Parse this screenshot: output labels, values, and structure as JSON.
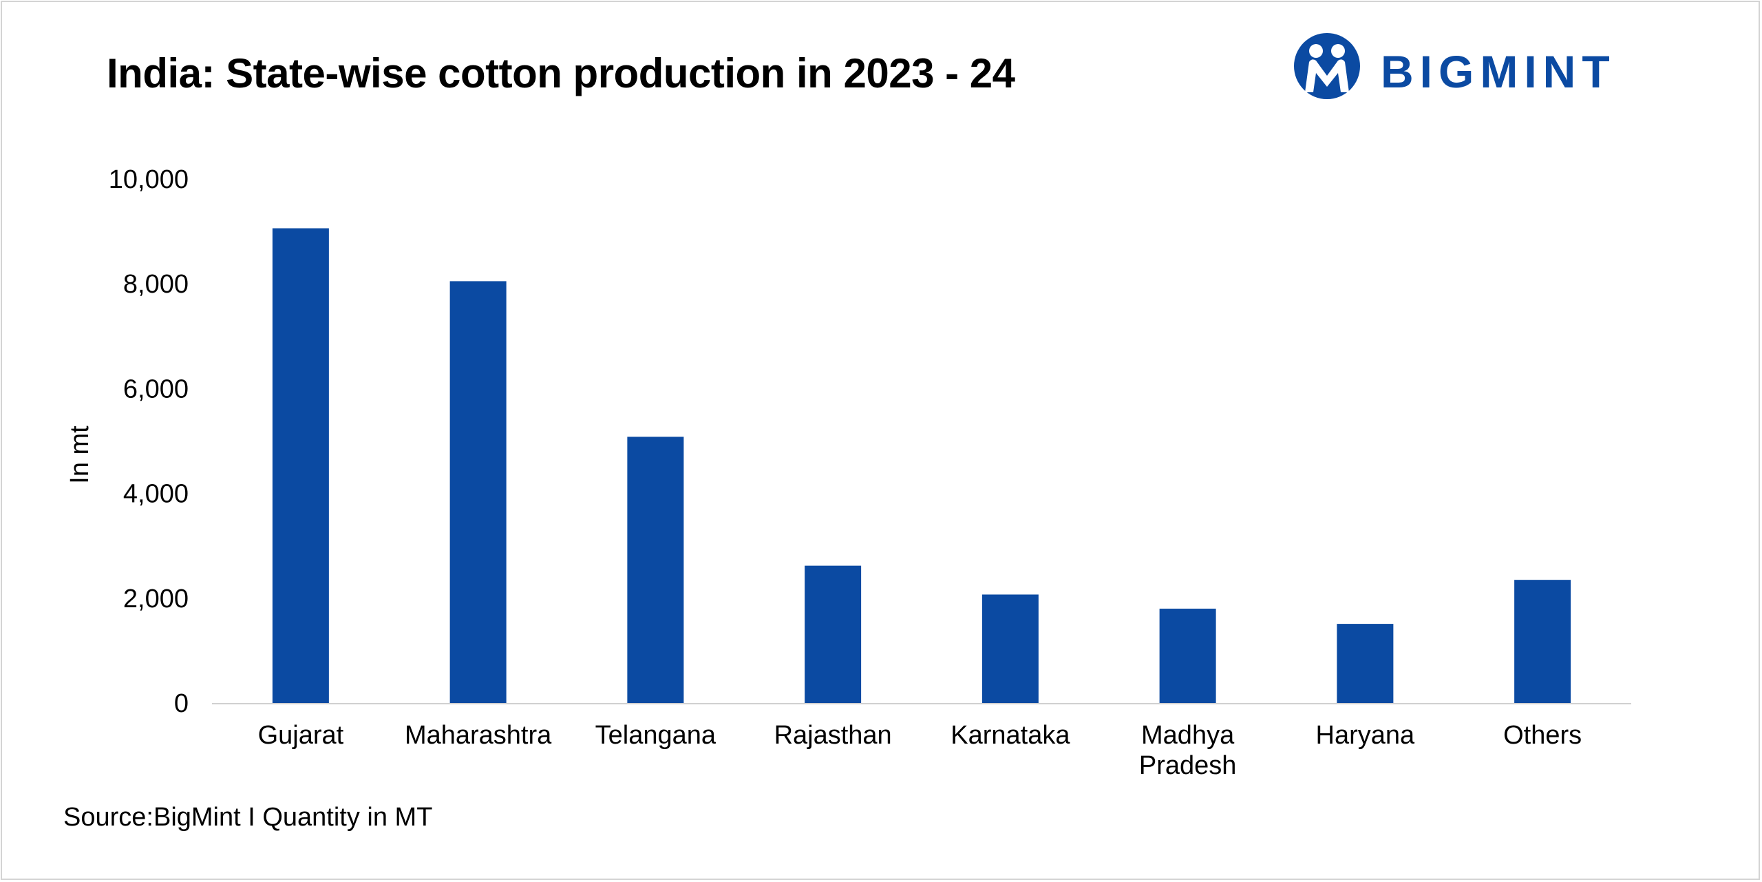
{
  "title": "India: State-wise cotton production in 2023 - 24",
  "logo": {
    "text": "BIGMINT",
    "icon": "bigmint-people-logo-icon"
  },
  "source": {
    "prefix": "Source:",
    "text": "BigMint I Quantity in MT"
  },
  "colors": {
    "bar": "#0b4aa2",
    "axis": "#d0d0d0",
    "brand": "#0b4aa2"
  },
  "chart_data": {
    "type": "bar",
    "title": "India: State-wise cotton production in 2023 - 24",
    "xlabel": "",
    "ylabel": "In mt",
    "categories": [
      "Gujarat",
      "Maharashtra",
      "Telangana",
      "Rajasthan",
      "Karnataka",
      "Madhya Pradesh",
      "Haryana",
      "Others"
    ],
    "category_lines": [
      [
        "Gujarat"
      ],
      [
        "Maharashtra"
      ],
      [
        "Telangana"
      ],
      [
        "Rajasthan"
      ],
      [
        "Karnataka"
      ],
      [
        "Madhya",
        "Pradesh"
      ],
      [
        "Haryana"
      ],
      [
        "Others"
      ]
    ],
    "values": [
      9060,
      8050,
      5080,
      2620,
      2070,
      1800,
      1510,
      2350
    ],
    "ylim": [
      0,
      10000
    ],
    "yticks": [
      0,
      2000,
      4000,
      6000,
      8000,
      10000
    ],
    "ytick_labels": [
      "0",
      "2,000",
      "4,000",
      "6,000",
      "8,000",
      "10,000"
    ],
    "grid": false,
    "legend": "none"
  }
}
